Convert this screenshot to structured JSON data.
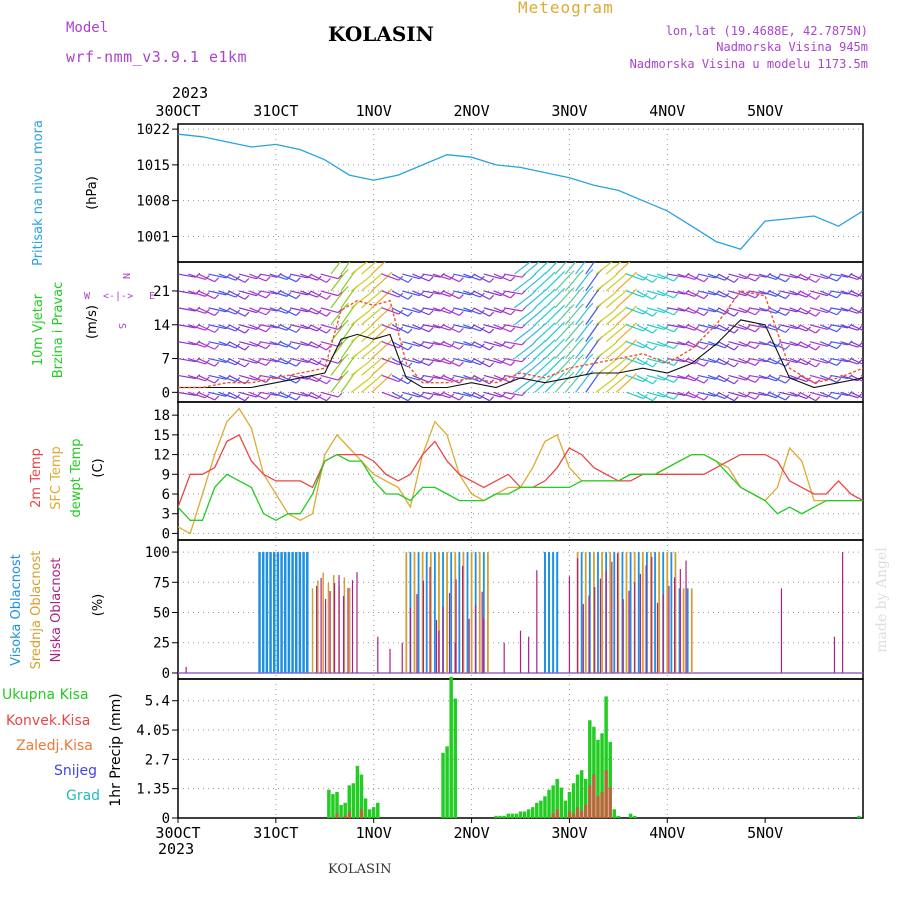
{
  "header": {
    "model_label": "Model",
    "model_name": "wrf-nmm_v3.9.1 e1km",
    "station": "KOLASIN",
    "meteogram_label": "Meteogram",
    "lonlat": "lon,lat (19.4688E, 42.7875N)",
    "altitude": "Nadmorska Visina 945m",
    "model_altitude": "Nadmorska Visina u modelu 1173.5m",
    "year_top": "2023",
    "year_bottom": "2023",
    "footer_station": "KOLASIN",
    "credit": "made by Angel"
  },
  "colors": {
    "pressure": "#29a3e0",
    "temp2m": "#ee4444",
    "sfc": "#ddaa33",
    "dewpt": "#22cc22",
    "high_cloud": "#1e90e0",
    "mid_cloud": "#d4a030",
    "low_cloud": "#aa2288",
    "total_precip": "#22cc22",
    "conv_precip": "#ee4444",
    "frz": "#ee7733",
    "snow": "#4444ee",
    "grad": "#22bbbb",
    "purple": "#aa44cc",
    "wind_speed": "#111111",
    "gust": "#ee5533"
  },
  "chart_data": [
    {
      "type": "line",
      "id": "pressure",
      "ylabel_lines": [
        "Pritisak na nivou mora",
        "(hPa)"
      ],
      "x_ticks": [
        "30OCT",
        "31OCT",
        "1NOV",
        "2NOV",
        "3NOV",
        "4NOV",
        "5NOV"
      ],
      "y_ticks": [
        1001,
        1008,
        1015,
        1022
      ],
      "ylim": [
        996,
        1023
      ],
      "x": [
        0,
        6,
        12,
        18,
        24,
        30,
        36,
        42,
        48,
        54,
        60,
        66,
        72,
        78,
        84,
        90,
        96,
        102,
        108,
        114,
        120,
        126,
        132,
        138,
        144,
        150,
        156,
        162,
        168
      ],
      "series": [
        {
          "values": [
            1021,
            1020.5,
            1019.5,
            1018.5,
            1019,
            1018,
            1016,
            1013,
            1012,
            1013,
            1015,
            1017,
            1016.5,
            1015,
            1014.5,
            1013.5,
            1012.5,
            1011,
            1010,
            1008,
            1006,
            1003,
            1000,
            998.5,
            1004,
            1004.5,
            1005,
            1003,
            1006
          ]
        }
      ]
    },
    {
      "type": "line",
      "id": "wind",
      "ylabel_lines": [
        "10m Vjetar",
        "Brzina i Pravac",
        "(m/s)"
      ],
      "compass": {
        "n": "N",
        "s": "S",
        "e": "E",
        "w": "W"
      },
      "y_ticks": [
        0,
        7,
        14,
        21
      ],
      "ylim": [
        -2,
        27
      ],
      "x": [
        0,
        6,
        12,
        18,
        24,
        30,
        36,
        40,
        44,
        48,
        52,
        56,
        60,
        66,
        72,
        78,
        84,
        90,
        96,
        102,
        108,
        114,
        120,
        126,
        132,
        138,
        144,
        150,
        156,
        162,
        168
      ],
      "series": [
        {
          "values": [
            1,
            1,
            1,
            1,
            2,
            3,
            4,
            11,
            12,
            11,
            12,
            3,
            1,
            1,
            2,
            1,
            3,
            2,
            3,
            4,
            4,
            5,
            4,
            6,
            10,
            15,
            14,
            3,
            1,
            2,
            3
          ]
        },
        {
          "values": [
            1,
            1,
            2,
            2,
            3,
            4,
            5,
            17,
            19,
            18,
            19,
            6,
            2,
            2,
            3,
            2,
            4,
            3,
            5,
            6,
            7,
            8,
            6,
            9,
            14,
            21,
            20,
            5,
            2,
            3,
            5
          ]
        }
      ]
    },
    {
      "type": "line",
      "id": "temperature",
      "ylabel_lines": [
        "2m Temp",
        "SFC Temp",
        "dewpt Temp",
        "(C)"
      ],
      "y_ticks": [
        0,
        3,
        6,
        9,
        12,
        15,
        18
      ],
      "ylim": [
        -1,
        20
      ],
      "x": [
        0,
        3,
        6,
        9,
        12,
        15,
        18,
        21,
        24,
        27,
        30,
        33,
        36,
        39,
        42,
        45,
        48,
        51,
        54,
        57,
        60,
        63,
        66,
        69,
        72,
        75,
        78,
        81,
        84,
        87,
        90,
        93,
        96,
        99,
        102,
        105,
        108,
        111,
        114,
        117,
        120,
        123,
        126,
        129,
        132,
        135,
        138,
        141,
        144,
        147,
        150,
        153,
        156,
        159,
        162,
        165,
        168
      ],
      "series": [
        {
          "values": [
            4,
            9,
            9,
            10,
            14,
            15,
            11,
            9,
            8,
            8,
            8,
            7,
            11,
            12,
            12,
            12,
            11,
            9,
            8,
            9,
            12,
            14,
            11,
            9,
            8,
            7,
            8,
            9,
            7,
            7,
            8,
            10,
            13,
            12,
            10,
            9,
            8,
            8,
            9,
            9,
            9,
            9,
            9,
            9,
            10,
            11,
            12,
            12,
            12,
            11,
            8,
            7,
            6,
            6,
            8,
            6,
            5
          ]
        },
        {
          "values": [
            1,
            0,
            6,
            12,
            17,
            19,
            16,
            9,
            6,
            3,
            2,
            3,
            12,
            15,
            13,
            11,
            9,
            8,
            7,
            4,
            12,
            17,
            15,
            9,
            6,
            5,
            6,
            7,
            7,
            10,
            14,
            15,
            10,
            8,
            8,
            8,
            8,
            9,
            9,
            9,
            10,
            11,
            12,
            12,
            11,
            10,
            7,
            6,
            5,
            7,
            13,
            11,
            5,
            5,
            5,
            5,
            5
          ]
        },
        {
          "values": [
            4,
            2,
            2,
            7,
            9,
            8,
            7,
            3,
            2,
            3,
            3,
            6,
            11,
            12,
            11,
            11,
            8,
            6,
            6,
            5,
            7,
            7,
            6,
            5,
            5,
            5,
            6,
            6,
            7,
            7,
            7,
            7,
            7,
            8,
            8,
            8,
            8,
            9,
            9,
            9,
            10,
            11,
            12,
            12,
            11,
            9,
            7,
            6,
            5,
            3,
            4,
            3,
            4,
            5,
            5,
            5,
            5
          ]
        }
      ]
    },
    {
      "type": "bar",
      "id": "cloud",
      "ylabel_lines": [
        "Visoka Oblacnost",
        "Srednja Oblacnost",
        "Niska Oblacnost",
        "(%)"
      ],
      "y_ticks": [
        0,
        25,
        50,
        75,
        100
      ],
      "ylim": [
        -5,
        110
      ]
    },
    {
      "type": "bar",
      "id": "precip",
      "ylabel_lines": [
        "1hr Precip (mm)"
      ],
      "legend": [
        "Ukupna Kisa",
        "Konvek.Kisa",
        "Zaledj.Kisa",
        "Snijeg",
        "Grad"
      ],
      "y_ticks": [
        "0",
        "1.35",
        "2.7",
        "4.05",
        "5.4"
      ],
      "y_tick_values": [
        0,
        1.35,
        2.7,
        4.05,
        5.4
      ],
      "x_ticks": [
        "30OCT",
        "31OCT",
        "1NOV",
        "2NOV",
        "3NOV",
        "4NOV",
        "5NOV"
      ],
      "ylim": [
        0,
        6.4
      ],
      "bars": [
        {
          "x": 37,
          "v": 1.3,
          "c": 0
        },
        {
          "x": 38,
          "v": 1.1,
          "c": 0
        },
        {
          "x": 39,
          "v": 1.2,
          "c": 0.2
        },
        {
          "x": 40,
          "v": 0.6,
          "c": 0
        },
        {
          "x": 41,
          "v": 0.7,
          "c": 0.1
        },
        {
          "x": 42,
          "v": 1.5,
          "c": 0.3
        },
        {
          "x": 43,
          "v": 1.6,
          "c": 0
        },
        {
          "x": 44,
          "v": 2.4,
          "c": 0
        },
        {
          "x": 45,
          "v": 2.0,
          "c": 0.4
        },
        {
          "x": 46,
          "v": 0.9,
          "c": 0
        },
        {
          "x": 47,
          "v": 0.4,
          "c": 0
        },
        {
          "x": 48,
          "v": 0.5,
          "c": 0
        },
        {
          "x": 49,
          "v": 0.7,
          "c": 0
        },
        {
          "x": 65,
          "v": 3.0,
          "c": 0
        },
        {
          "x": 66,
          "v": 3.3,
          "c": 0
        },
        {
          "x": 67,
          "v": 6.5,
          "c": 0
        },
        {
          "x": 68,
          "v": 5.5,
          "c": 0
        },
        {
          "x": 78,
          "v": 0.1,
          "c": 0
        },
        {
          "x": 79,
          "v": 0.1,
          "c": 0
        },
        {
          "x": 80,
          "v": 0.1,
          "c": 0
        },
        {
          "x": 81,
          "v": 0.2,
          "c": 0
        },
        {
          "x": 82,
          "v": 0.2,
          "c": 0
        },
        {
          "x": 83,
          "v": 0.2,
          "c": 0
        },
        {
          "x": 84,
          "v": 0.3,
          "c": 0
        },
        {
          "x": 85,
          "v": 0.3,
          "c": 0
        },
        {
          "x": 86,
          "v": 0.4,
          "c": 0
        },
        {
          "x": 87,
          "v": 0.5,
          "c": 0
        },
        {
          "x": 88,
          "v": 0.7,
          "c": 0
        },
        {
          "x": 89,
          "v": 0.8,
          "c": 0
        },
        {
          "x": 90,
          "v": 1.0,
          "c": 0
        },
        {
          "x": 91,
          "v": 1.3,
          "c": 0
        },
        {
          "x": 92,
          "v": 1.5,
          "c": 0.2
        },
        {
          "x": 93,
          "v": 1.8,
          "c": 0.4
        },
        {
          "x": 94,
          "v": 1.4,
          "c": 0
        },
        {
          "x": 95,
          "v": 0.8,
          "c": 0
        },
        {
          "x": 96,
          "v": 1.2,
          "c": 0.3
        },
        {
          "x": 97,
          "v": 1.6,
          "c": 0.2
        },
        {
          "x": 98,
          "v": 2.0,
          "c": 0.5
        },
        {
          "x": 99,
          "v": 2.2,
          "c": 0.3
        },
        {
          "x": 100,
          "v": 1.8,
          "c": 0.6
        },
        {
          "x": 101,
          "v": 4.5,
          "c": 1.5
        },
        {
          "x": 102,
          "v": 4.2,
          "c": 2.0
        },
        {
          "x": 103,
          "v": 3.6,
          "c": 1.0
        },
        {
          "x": 104,
          "v": 3.9,
          "c": 1.2
        },
        {
          "x": 105,
          "v": 5.6,
          "c": 2.2
        },
        {
          "x": 106,
          "v": 3.5,
          "c": 1.4
        },
        {
          "x": 107,
          "v": 0.4,
          "c": 0
        },
        {
          "x": 108,
          "v": 0.1,
          "c": 0
        },
        {
          "x": 111,
          "v": 0.2,
          "c": 0
        },
        {
          "x": 112,
          "v": 0.1,
          "c": 0
        },
        {
          "x": 167,
          "v": 0.1,
          "c": 0
        }
      ]
    }
  ]
}
